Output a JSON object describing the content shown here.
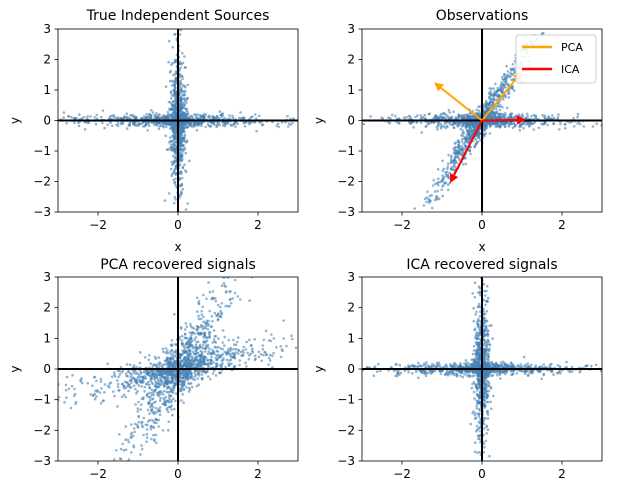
{
  "figure": {
    "background": "#ffffff"
  },
  "chart_data": [
    {
      "id": "true_sources",
      "type": "scatter",
      "title": "True Independent Sources",
      "xlabel": "x",
      "ylabel": "y",
      "xlim": [
        -3,
        3
      ],
      "ylim": [
        -3,
        3
      ],
      "xticks": [
        -2,
        0,
        2
      ],
      "yticks": [
        -3,
        -2,
        -1,
        0,
        1,
        2,
        3
      ],
      "point_color": "#4682b4",
      "spread": {
        "x_scale": 0.1,
        "y_scale": 0.1
      },
      "arms": [
        {
          "dx": 1,
          "dy": 0,
          "scale": 0.9
        },
        {
          "dx": 0,
          "dy": 1,
          "scale": 0.9
        }
      ],
      "arrows": []
    },
    {
      "id": "observations",
      "type": "scatter",
      "title": "Observations",
      "xlabel": "x",
      "ylabel": "y",
      "xlim": [
        -3,
        3
      ],
      "ylim": [
        -3,
        3
      ],
      "xticks": [
        -2,
        0,
        2
      ],
      "yticks": [
        -3,
        -2,
        -1,
        0,
        1,
        2,
        3
      ],
      "point_color": "#4682b4",
      "spread": {
        "x_scale": 0.12,
        "y_scale": 0.12
      },
      "arms": [
        {
          "dx": 1,
          "dy": 0,
          "scale": 0.8
        },
        {
          "dx": 0.5,
          "dy": 1,
          "scale": 1.1
        }
      ],
      "arrows": [
        {
          "series": "PCA",
          "color": "#ffa500",
          "x": 1.0,
          "y": 1.6
        },
        {
          "series": "PCA",
          "color": "#ffa500",
          "x": -1.2,
          "y": 1.25
        },
        {
          "series": "ICA",
          "color": "#ff0000",
          "x": 1.1,
          "y": 0.02
        },
        {
          "series": "ICA",
          "color": "#ff0000",
          "x": -0.8,
          "y": -2.05
        }
      ],
      "legend": {
        "position": "upper right",
        "entries": [
          {
            "label": "PCA",
            "color": "#ffa500"
          },
          {
            "label": "ICA",
            "color": "#ff0000"
          }
        ]
      }
    },
    {
      "id": "pca_recovered",
      "type": "scatter",
      "title": "PCA recovered signals",
      "xlabel": "",
      "ylabel": "y",
      "xlim": [
        -3,
        3
      ],
      "ylim": [
        -3,
        3
      ],
      "xticks": [
        -2,
        0,
        2
      ],
      "yticks": [
        -3,
        -2,
        -1,
        0,
        1,
        2,
        3
      ],
      "point_color": "#4682b4",
      "spread": {
        "x_scale": 0.25,
        "y_scale": 0.25
      },
      "arms": [
        {
          "dx": 0.45,
          "dy": 1,
          "scale": 1.0
        },
        {
          "dx": 1,
          "dy": 0.32,
          "scale": 1.0
        }
      ],
      "arrows": []
    },
    {
      "id": "ica_recovered",
      "type": "scatter",
      "title": "ICA recovered signals",
      "xlabel": "",
      "ylabel": "y",
      "xlim": [
        -3,
        3
      ],
      "ylim": [
        -3,
        3
      ],
      "xticks": [
        -2,
        0,
        2
      ],
      "yticks": [
        -3,
        -2,
        -1,
        0,
        1,
        2,
        3
      ],
      "point_color": "#4682b4",
      "spread": {
        "x_scale": 0.1,
        "y_scale": 0.1
      },
      "arms": [
        {
          "dx": 1,
          "dy": 0,
          "scale": 0.9
        },
        {
          "dx": 0,
          "dy": 1,
          "scale": 0.9
        }
      ],
      "arrows": []
    }
  ]
}
